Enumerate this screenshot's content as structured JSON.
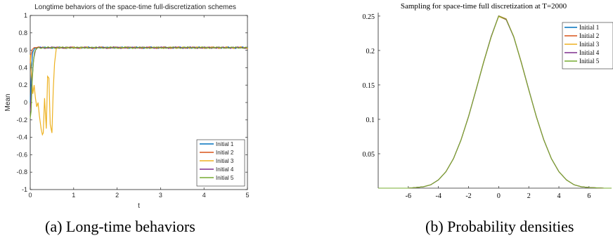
{
  "captions": {
    "a": "(a) Long-time behaviors",
    "b": "(b) Probability densities"
  },
  "chart_data": [
    {
      "type": "line",
      "title": "Longtime behaviors of the space-time full-discretization schemes",
      "xlabel": "t",
      "ylabel": "Mean",
      "xlim": [
        0,
        5
      ],
      "ylim": [
        -1,
        1
      ],
      "xticks": [
        "0",
        "1",
        "2",
        "3",
        "4",
        "5"
      ],
      "yticks": [
        "-1",
        "-0.8",
        "-0.6",
        "-0.4",
        "-0.2",
        "0",
        "0.2",
        "0.4",
        "0.6",
        "0.8",
        "1"
      ],
      "legend_position": "bottom-right",
      "series": [
        {
          "name": "Initial 1",
          "color": "#0072BD",
          "x": [
            0,
            0.03,
            0.06,
            0.1,
            0.15,
            0.2,
            5
          ],
          "y": [
            0.0,
            0.4,
            0.58,
            0.62,
            0.63,
            0.63,
            0.63
          ]
        },
        {
          "name": "Initial 2",
          "color": "#D95319",
          "x": [
            0,
            0.02,
            0.05,
            0.09,
            0.14,
            0.2,
            5
          ],
          "y": [
            0.45,
            0.55,
            0.61,
            0.63,
            0.63,
            0.63,
            0.63
          ]
        },
        {
          "name": "Initial 3",
          "color": "#EDB120",
          "x": [
            0,
            0.03,
            0.06,
            0.09,
            0.12,
            0.15,
            0.18,
            0.21,
            0.25,
            0.28,
            0.3,
            0.33,
            0.37,
            0.4,
            0.43,
            0.46,
            0.5,
            0.53,
            0.56,
            0.6,
            0.65,
            5
          ],
          "y": [
            0.55,
            0.3,
            0.1,
            0.2,
            0.05,
            -0.05,
            0.0,
            -0.15,
            -0.3,
            -0.37,
            -0.35,
            0.05,
            -0.3,
            0.3,
            0.28,
            -0.25,
            -0.35,
            0.15,
            0.45,
            0.62,
            0.63,
            0.63
          ]
        },
        {
          "name": "Initial 4",
          "color": "#7E2F8E",
          "x": [
            0,
            0.04,
            0.08,
            0.12,
            0.17,
            0.25,
            5
          ],
          "y": [
            -0.1,
            0.25,
            0.5,
            0.6,
            0.63,
            0.63,
            0.63
          ]
        },
        {
          "name": "Initial 5",
          "color": "#77AC30",
          "x": [
            0,
            0.02,
            0.04,
            0.07,
            0.1,
            0.14,
            0.2,
            5
          ],
          "y": [
            -0.18,
            -0.1,
            0.2,
            0.45,
            0.58,
            0.62,
            0.63,
            0.63
          ]
        }
      ]
    },
    {
      "type": "line",
      "title": "Sampling for space-time full discretization at T=2000",
      "xlabel": "",
      "ylabel": "",
      "xlim": [
        -8,
        7.5
      ],
      "ylim": [
        0,
        0.255
      ],
      "xticks": [
        "-6",
        "-4",
        "-2",
        "0",
        "2",
        "4",
        "6"
      ],
      "yticks": [
        "0.05",
        "0.1",
        "0.15",
        "0.2",
        "0.25"
      ],
      "legend_position": "top-right",
      "series": [
        {
          "name": "Initial 1",
          "color": "#0072BD"
        },
        {
          "name": "Initial 2",
          "color": "#D95319"
        },
        {
          "name": "Initial 3",
          "color": "#EDB120"
        },
        {
          "name": "Initial 4",
          "color": "#7E2F8E"
        },
        {
          "name": "Initial 5",
          "color": "#77AC30"
        }
      ],
      "x": [
        -8,
        -7,
        -6,
        -5.5,
        -5,
        -4.5,
        -4,
        -3.5,
        -3,
        -2.5,
        -2,
        -1.5,
        -1,
        -0.5,
        0,
        0.5,
        1,
        1.5,
        2,
        2.5,
        3,
        3.5,
        4,
        4.5,
        5,
        5.5,
        6,
        7,
        7.5
      ],
      "density": [
        0.0,
        0.0,
        0.0,
        0.001,
        0.002,
        0.005,
        0.012,
        0.024,
        0.043,
        0.07,
        0.104,
        0.143,
        0.183,
        0.22,
        0.25,
        0.245,
        0.22,
        0.183,
        0.143,
        0.104,
        0.07,
        0.043,
        0.024,
        0.012,
        0.005,
        0.002,
        0.001,
        0.0,
        0.0
      ]
    }
  ]
}
